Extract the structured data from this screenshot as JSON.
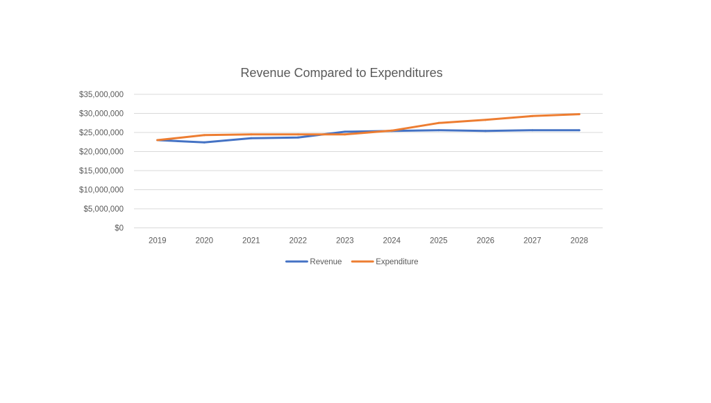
{
  "chart_data": {
    "type": "line",
    "title": "Revenue Compared to Expenditures",
    "xlabel": "",
    "ylabel": "",
    "categories": [
      "2019",
      "2020",
      "2021",
      "2022",
      "2023",
      "2024",
      "2025",
      "2026",
      "2027",
      "2028"
    ],
    "ylim": [
      0,
      35000000
    ],
    "y_ticks": [
      0,
      5000000,
      10000000,
      15000000,
      20000000,
      25000000,
      30000000,
      35000000
    ],
    "y_tick_labels": [
      "$0",
      "$5,000,000",
      "$10,000,000",
      "$15,000,000",
      "$20,000,000",
      "$25,000,000",
      "$30,000,000",
      "$35,000,000"
    ],
    "grid": true,
    "legend_position": "bottom",
    "series": [
      {
        "name": "Revenue",
        "color": "#4472c4",
        "values": [
          23000000,
          22400000,
          23500000,
          23700000,
          25200000,
          25400000,
          25600000,
          25400000,
          25600000,
          25600000
        ]
      },
      {
        "name": "Expenditure",
        "color": "#ed7d31",
        "values": [
          23000000,
          24300000,
          24500000,
          24500000,
          24500000,
          25500000,
          27500000,
          28300000,
          29300000,
          29800000
        ]
      }
    ]
  }
}
